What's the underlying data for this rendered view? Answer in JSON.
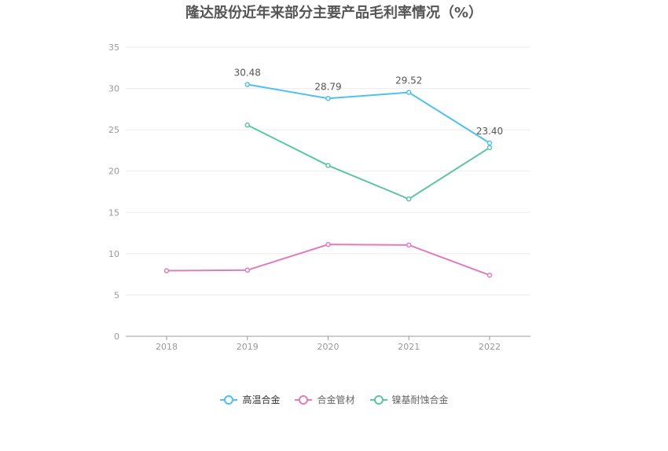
{
  "chart_data": {
    "type": "line",
    "title": "隆达股份近年来部分主要产品毛利率情况（%）",
    "categories": [
      "2018",
      "2019",
      "2020",
      "2021",
      "2022"
    ],
    "ylim": [
      0,
      35
    ],
    "yticks": [
      0,
      5,
      10,
      15,
      20,
      25,
      30,
      35
    ],
    "grid": true,
    "legend_position": "bottom",
    "series": [
      {
        "name": "高温合金",
        "color": "#4fc0f0",
        "values": [
          null,
          30.48,
          28.79,
          29.52,
          23.4
        ],
        "labels": [
          null,
          "30.48",
          "28.79",
          "29.52",
          "23.40"
        ]
      },
      {
        "name": "合金管材",
        "color": "#e07cbc",
        "values": [
          7.94,
          8.01,
          11.11,
          11.05,
          7.4
        ]
      },
      {
        "name": "镍基耐蚀合金",
        "color": "#5ec4a8",
        "values": [
          null,
          25.57,
          20.68,
          16.62,
          22.84
        ]
      }
    ]
  }
}
